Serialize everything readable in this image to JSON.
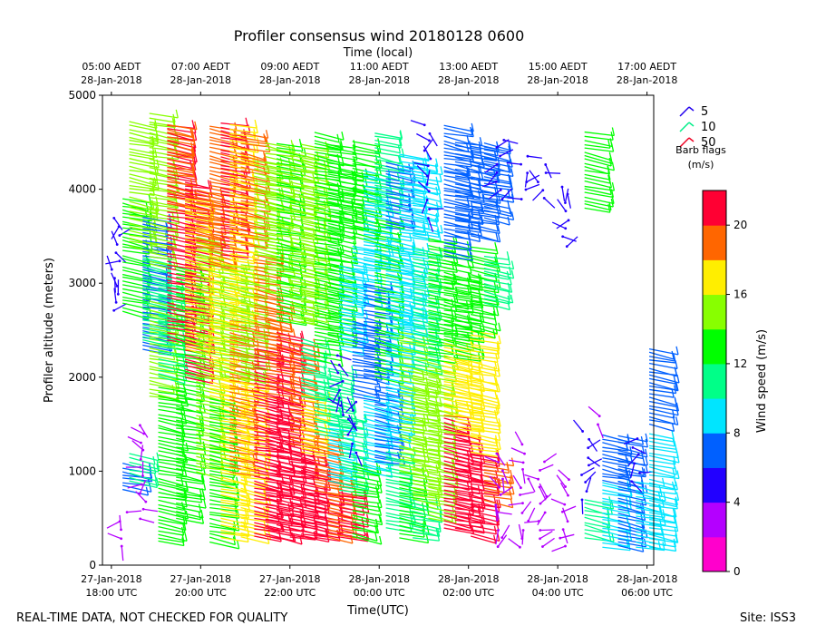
{
  "chart_data": {
    "type": "wind-barb-profile",
    "title": "Profiler consensus wind 20180128 0600",
    "xlabel_bottom": "Time(UTC)",
    "xlabel_top": "Time (local)",
    "ylabel": "Profiler altitude (meters)",
    "ylim": [
      0,
      5000
    ],
    "xlim_hours_utc": [
      -6.2,
      6.15
    ],
    "yticks": [
      0,
      1000,
      2000,
      3000,
      4000,
      5000
    ],
    "bottom_ticks": [
      {
        "h": -6,
        "date": "27-Jan-2018",
        "time": "18:00 UTC"
      },
      {
        "h": -4,
        "date": "27-Jan-2018",
        "time": "20:00 UTC"
      },
      {
        "h": -2,
        "date": "27-Jan-2018",
        "time": "22:00 UTC"
      },
      {
        "h": 0,
        "date": "28-Jan-2018",
        "time": "00:00 UTC"
      },
      {
        "h": 2,
        "date": "28-Jan-2018",
        "time": "02:00 UTC"
      },
      {
        "h": 4,
        "date": "28-Jan-2018",
        "time": "04:00 UTC"
      },
      {
        "h": 6,
        "date": "28-Jan-2018",
        "time": "06:00 UTC"
      }
    ],
    "top_ticks": [
      {
        "h": -6,
        "time": "05:00 AEDT",
        "date": "28-Jan-2018"
      },
      {
        "h": -4,
        "time": "07:00 AEDT",
        "date": "28-Jan-2018"
      },
      {
        "h": -2,
        "time": "09:00 AEDT",
        "date": "28-Jan-2018"
      },
      {
        "h": 0,
        "time": "11:00 AEDT",
        "date": "28-Jan-2018"
      },
      {
        "h": 2,
        "time": "13:00 AEDT",
        "date": "28-Jan-2018"
      },
      {
        "h": 4,
        "time": "15:00 AEDT",
        "date": "28-Jan-2018"
      },
      {
        "h": 6,
        "time": "17:00 AEDT",
        "date": "28-Jan-2018"
      }
    ],
    "legend": {
      "entries": [
        {
          "label": "5",
          "color": "#2200ee"
        },
        {
          "label": "10",
          "color": "#00ee88"
        },
        {
          "label": "50",
          "color": "#ee0022"
        }
      ],
      "title_line1": "Barb flags",
      "title_line2": "(m/s)"
    },
    "colorbar": {
      "label": "Wind speed (m/s)",
      "min": 0,
      "max": 22,
      "ticks": [
        0,
        4,
        8,
        12,
        16,
        20
      ],
      "colors": [
        "#ff00cc",
        "#b400ff",
        "#2200ff",
        "#0060ff",
        "#00e5ff",
        "#00ff88",
        "#00ff00",
        "#88ff00",
        "#ffee00",
        "#ff6600",
        "#ff0033"
      ]
    },
    "columns": [
      {
        "t": -5.9,
        "ranges": [
          [
            2700,
            3750,
            5
          ]
        ]
      },
      {
        "t": -5.75,
        "ranges": [
          [
            2700,
            3900,
            12
          ],
          [
            800,
            1100,
            6
          ],
          [
            200,
            600,
            3
          ]
        ]
      },
      {
        "t": -5.6,
        "ranges": [
          [
            3400,
            4750,
            15
          ],
          [
            900,
            1200,
            10
          ]
        ]
      },
      {
        "t": -5.3,
        "ranges": [
          [
            2300,
            3700,
            7
          ],
          [
            2400,
            3300,
            10
          ],
          [
            500,
            1500,
            3
          ]
        ]
      },
      {
        "t": -5.15,
        "ranges": [
          [
            3200,
            4800,
            15
          ],
          [
            1800,
            2800,
            14
          ]
        ]
      },
      {
        "t": -4.95,
        "ranges": [
          [
            250,
            1900,
            13
          ],
          [
            2000,
            3000,
            11
          ]
        ]
      },
      {
        "t": -4.75,
        "ranges": [
          [
            2400,
            4700,
            21
          ],
          [
            3800,
            4700,
            19
          ]
        ]
      },
      {
        "t": -4.55,
        "ranges": [
          [
            500,
            3200,
            12
          ]
        ]
      },
      {
        "t": -4.35,
        "ranges": [
          [
            2000,
            4100,
            20
          ],
          [
            2300,
            3900,
            17
          ]
        ]
      },
      {
        "t": -4.1,
        "ranges": [
          [
            1000,
            3500,
            15
          ],
          [
            3400,
            4000,
            19
          ]
        ]
      },
      {
        "t": -3.8,
        "ranges": [
          [
            250,
            1800,
            12
          ],
          [
            1800,
            3300,
            16
          ],
          [
            3200,
            4700,
            19
          ]
        ]
      },
      {
        "t": -3.55,
        "ranges": [
          [
            300,
            2000,
            17
          ],
          [
            2000,
            3200,
            14
          ],
          [
            3300,
            4700,
            21
          ]
        ]
      },
      {
        "t": -3.35,
        "ranges": [
          [
            1000,
            2600,
            19
          ],
          [
            2600,
            4700,
            17
          ]
        ]
      },
      {
        "t": -3.1,
        "ranges": [
          [
            300,
            2000,
            16
          ],
          [
            2000,
            3200,
            15
          ],
          [
            3400,
            4600,
            18
          ]
        ]
      },
      {
        "t": -2.8,
        "ranges": [
          [
            300,
            2300,
            21
          ],
          [
            2300,
            3300,
            19
          ],
          [
            3300,
            4300,
            14
          ]
        ]
      },
      {
        "t": -2.55,
        "ranges": [
          [
            300,
            1800,
            21
          ],
          [
            1800,
            2800,
            19
          ],
          [
            2900,
            4500,
            15
          ]
        ]
      },
      {
        "t": -2.3,
        "ranges": [
          [
            300,
            1600,
            21
          ],
          [
            1600,
            2500,
            20
          ],
          [
            2600,
            4500,
            13
          ]
        ]
      },
      {
        "t": -2.0,
        "ranges": [
          [
            300,
            1300,
            21
          ],
          [
            1300,
            2400,
            18
          ],
          [
            2600,
            4400,
            14
          ]
        ]
      },
      {
        "t": -1.75,
        "ranges": [
          [
            300,
            1200,
            21
          ],
          [
            1200,
            1800,
            16
          ],
          [
            1800,
            2400,
            11
          ],
          [
            2600,
            4500,
            14
          ]
        ]
      },
      {
        "t": -1.45,
        "ranges": [
          [
            300,
            800,
            21
          ],
          [
            800,
            1400,
            19
          ],
          [
            1400,
            2000,
            11
          ],
          [
            2200,
            4600,
            12
          ]
        ]
      },
      {
        "t": -1.15,
        "ranges": [
          [
            300,
            900,
            18
          ],
          [
            900,
            1500,
            9
          ],
          [
            1500,
            2100,
            10
          ],
          [
            2400,
            4500,
            13
          ]
        ]
      },
      {
        "t": -0.9,
        "ranges": [
          [
            300,
            800,
            21
          ],
          [
            800,
            1600,
            11
          ],
          [
            1600,
            2300,
            5
          ],
          [
            2300,
            3200,
            9
          ],
          [
            3600,
            4200,
            12
          ]
        ]
      },
      {
        "t": -0.6,
        "ranges": [
          [
            300,
            1100,
            12
          ],
          [
            1200,
            1800,
            5
          ],
          [
            1800,
            2600,
            6
          ],
          [
            2800,
            3400,
            8
          ],
          [
            3500,
            4500,
            13
          ]
        ]
      },
      {
        "t": -0.35,
        "ranges": [
          [
            1000,
            1800,
            9
          ],
          [
            2000,
            3000,
            7
          ],
          [
            3200,
            4200,
            9
          ]
        ]
      },
      {
        "t": -0.1,
        "ranges": [
          [
            1100,
            1900,
            7
          ],
          [
            2000,
            3700,
            12
          ],
          [
            3800,
            4600,
            11
          ]
        ]
      },
      {
        "t": 0.15,
        "ranges": [
          [
            400,
            1200,
            10
          ],
          [
            1300,
            2700,
            9
          ],
          [
            2700,
            3500,
            9
          ],
          [
            3600,
            4300,
            7
          ]
        ]
      },
      {
        "t": 0.45,
        "ranges": [
          [
            300,
            1000,
            12
          ],
          [
            1000,
            2500,
            15
          ],
          [
            2500,
            3400,
            9
          ],
          [
            3500,
            4400,
            9
          ]
        ]
      },
      {
        "t": 0.75,
        "ranges": [
          [
            300,
            700,
            10
          ],
          [
            700,
            2100,
            14
          ],
          [
            2100,
            3400,
            11
          ],
          [
            3500,
            4300,
            9
          ]
        ]
      },
      {
        "t": 1.1,
        "ranges": [
          [
            500,
            1200,
            14
          ],
          [
            1200,
            2200,
            15
          ],
          [
            2200,
            3500,
            12
          ],
          [
            3700,
            4700,
            4
          ]
        ]
      },
      {
        "t": 1.45,
        "ranges": [
          [
            400,
            1600,
            20
          ],
          [
            1600,
            2400,
            16
          ],
          [
            2400,
            3400,
            13
          ],
          [
            3300,
            4200,
            7
          ],
          [
            4200,
            4700,
            6
          ]
        ]
      },
      {
        "t": 1.7,
        "ranges": [
          [
            400,
            1400,
            21
          ],
          [
            1400,
            2200,
            17
          ],
          [
            2200,
            3100,
            13
          ],
          [
            3500,
            4500,
            6
          ]
        ]
      },
      {
        "t": 2.05,
        "ranges": [
          [
            300,
            1200,
            21
          ],
          [
            1200,
            2500,
            16
          ],
          [
            2500,
            3400,
            12
          ],
          [
            3500,
            4500,
            6
          ]
        ]
      },
      {
        "t": 2.35,
        "ranges": [
          [
            700,
            1100,
            19
          ],
          [
            3700,
            4500,
            7
          ],
          [
            2800,
            3300,
            11
          ]
        ]
      },
      {
        "t": 2.7,
        "ranges": [
          [
            200,
            1200,
            3
          ],
          [
            3900,
            4600,
            5
          ]
        ]
      },
      {
        "t": 3.25,
        "ranges": [
          [
            200,
            1300,
            3
          ],
          [
            3900,
            4400,
            4
          ]
        ]
      },
      {
        "t": 3.65,
        "ranges": [
          [
            200,
            1100,
            3
          ],
          [
            3900,
            4300,
            5
          ]
        ]
      },
      {
        "t": 4.15,
        "ranges": [
          [
            200,
            1000,
            3
          ],
          [
            3400,
            4100,
            4
          ]
        ]
      },
      {
        "t": 4.6,
        "ranges": [
          [
            300,
            700,
            10
          ],
          [
            700,
            1500,
            4
          ],
          [
            3800,
            4600,
            13
          ]
        ]
      },
      {
        "t": 5.0,
        "ranges": [
          [
            200,
            900,
            8
          ],
          [
            900,
            1400,
            6
          ],
          [
            1500,
            1600,
            3
          ]
        ]
      },
      {
        "t": 5.35,
        "ranges": [
          [
            200,
            900,
            7
          ],
          [
            900,
            1400,
            6
          ]
        ]
      },
      {
        "t": 5.75,
        "ranges": [
          [
            200,
            900,
            8
          ],
          [
            900,
            1400,
            5
          ]
        ]
      },
      {
        "t": 6.05,
        "ranges": [
          [
            200,
            1400,
            9
          ],
          [
            1500,
            2300,
            6
          ]
        ]
      }
    ]
  },
  "footer": {
    "note": "REAL-TIME DATA, NOT CHECKED FOR QUALITY",
    "site": "Site: ISS3"
  }
}
